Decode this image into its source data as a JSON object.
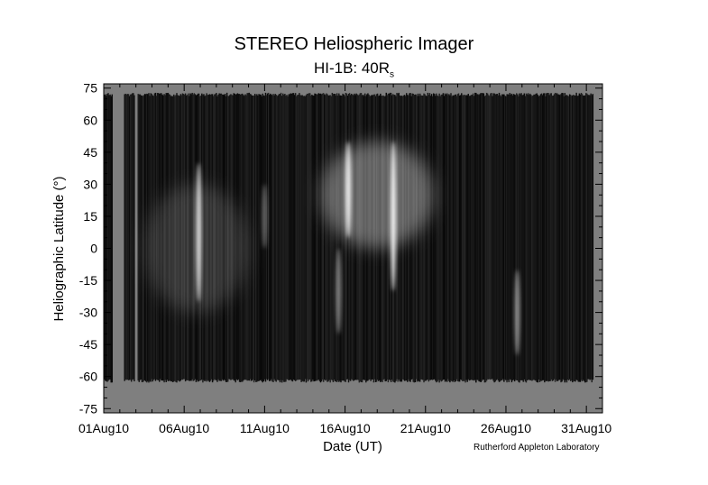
{
  "chart_data": {
    "type": "heatmap",
    "title": "STEREO Heliospheric Imager",
    "subtitle_main": "HI-1B: 40R",
    "subtitle_sub": "s",
    "xlabel": "Date (UT)",
    "ylabel": "Heliographic Latitude (°)",
    "credit": "Rutherford Appleton Laboratory",
    "x_ticks": [
      "01Aug10",
      "06Aug10",
      "11Aug10",
      "16Aug10",
      "21Aug10",
      "26Aug10",
      "31Aug10"
    ],
    "x_tick_values": [
      1,
      6,
      11,
      16,
      21,
      26,
      31
    ],
    "xlim": [
      1,
      32
    ],
    "y_ticks": [
      -75,
      -60,
      -45,
      -30,
      -15,
      0,
      15,
      30,
      45,
      60,
      75
    ],
    "ylim": [
      -77,
      77
    ],
    "data_lat_range": [
      -62,
      72
    ],
    "colormap": "grayscale",
    "no_data_color": "#7f7f7f",
    "grid": false,
    "gaps": [
      {
        "start": 1.5,
        "end": 2.25
      },
      {
        "start": 2.9,
        "end": 3.05
      }
    ],
    "bright_features": [
      {
        "day": 6.9,
        "lat_from": -25,
        "lat_to": 40,
        "intensity": 0.8
      },
      {
        "day": 11.0,
        "lat_from": 0,
        "lat_to": 30,
        "intensity": 0.35
      },
      {
        "day": 15.6,
        "lat_from": -40,
        "lat_to": 0,
        "intensity": 0.45
      },
      {
        "day": 16.2,
        "lat_from": 5,
        "lat_to": 50,
        "intensity": 0.9
      },
      {
        "day": 19.0,
        "lat_from": -20,
        "lat_to": 50,
        "intensity": 0.9
      },
      {
        "day": 26.7,
        "lat_from": -50,
        "lat_to": -10,
        "intensity": 0.5
      }
    ],
    "diffuse_regions": [
      {
        "day_from": 14.5,
        "day_to": 21.5,
        "lat_from": 0,
        "lat_to": 50,
        "intensity": 0.35
      },
      {
        "day_from": 3.5,
        "day_to": 10.0,
        "lat_from": -30,
        "lat_to": 30,
        "intensity": 0.15
      }
    ]
  }
}
